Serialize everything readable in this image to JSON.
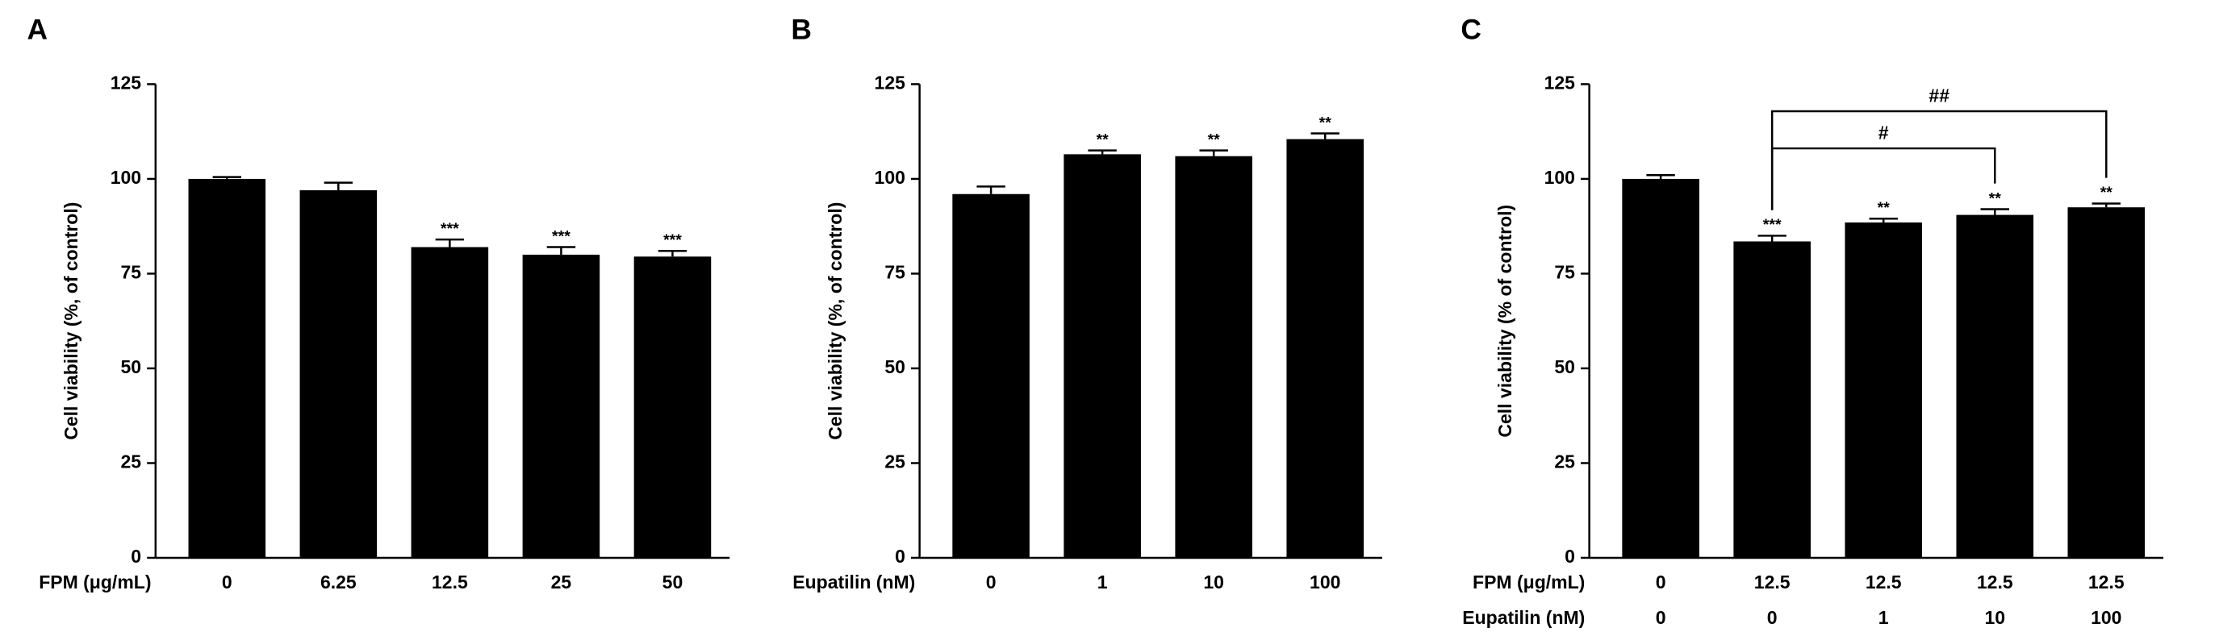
{
  "chart_data": [
    {
      "type": "bar",
      "panel": "A",
      "ylabel": "Cell viability (%, of control)",
      "x_label": "FPM (μg/mL)",
      "categories": [
        "0",
        "6.25",
        "12.5",
        "25",
        "50"
      ],
      "values": [
        100,
        97,
        82,
        80,
        79.5
      ],
      "errors": [
        0.5,
        2,
        2,
        2,
        1.5
      ],
      "significance": [
        null,
        null,
        "***",
        "***",
        "***"
      ],
      "color": "#000000",
      "ylim": [
        0,
        125
      ],
      "yticks": [
        0,
        25,
        50,
        75,
        100,
        125
      ]
    },
    {
      "type": "bar",
      "panel": "B",
      "ylabel": "Cell viability (%, of control)",
      "x_label": "Eupatilin (nM)",
      "categories": [
        "0",
        "1",
        "10",
        "100"
      ],
      "values": [
        96,
        106.5,
        106,
        110.5
      ],
      "errors": [
        2,
        1,
        1.5,
        1.5
      ],
      "significance": [
        null,
        "**",
        "**",
        "**"
      ],
      "color": "#000000",
      "ylim": [
        0,
        125
      ],
      "yticks": [
        0,
        25,
        50,
        75,
        100,
        125
      ]
    },
    {
      "type": "bar",
      "panel": "C",
      "ylabel": "Cell viability (% of control)",
      "x_label": "FPM (μg/mL)",
      "categories": [
        "0",
        "12.5",
        "12.5",
        "12.5",
        "12.5"
      ],
      "x_label2": "Eupatilin (nM)",
      "categories2": [
        "0",
        "0",
        "1",
        "10",
        "100"
      ],
      "values": [
        100,
        83.5,
        88.5,
        90.5,
        92.5
      ],
      "errors": [
        1,
        1.5,
        1,
        1.5,
        1
      ],
      "significance": [
        null,
        "***",
        "**",
        "**",
        "**"
      ],
      "comparisons": [
        {
          "from": 1,
          "to": 3,
          "label": "#"
        },
        {
          "from": 1,
          "to": 4,
          "label": "##"
        }
      ],
      "color": "#000000",
      "ylim": [
        0,
        125
      ],
      "yticks": [
        0,
        25,
        50,
        75,
        100,
        125
      ]
    }
  ]
}
